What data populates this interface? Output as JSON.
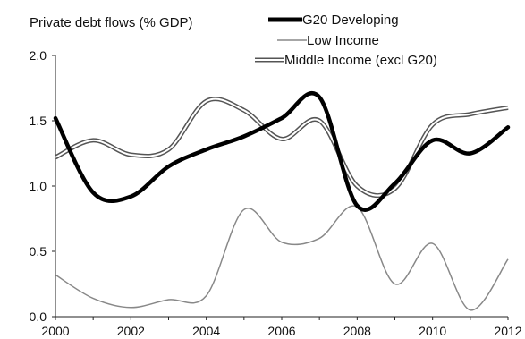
{
  "chart_data": {
    "type": "line",
    "title": "Private debt flows (% GDP)",
    "xlabel": "",
    "ylabel": "",
    "xlim": [
      2000,
      2012
    ],
    "ylim": [
      0,
      2
    ],
    "x_ticks": [
      "2000",
      "2002",
      "2004",
      "2006",
      "2008",
      "2010",
      "2012"
    ],
    "y_ticks": [
      "0.0",
      "0.5",
      "1.0",
      "1.5",
      "2.0"
    ],
    "grid": false,
    "legend_position": "top-right",
    "x": [
      2000,
      2001,
      2002,
      2003,
      2004,
      2005,
      2006,
      2007,
      2008,
      2009,
      2010,
      2011,
      2012
    ],
    "series": [
      {
        "name": "G20 Developing",
        "style": "thick-solid",
        "color": "#000000",
        "values": [
          1.52,
          0.95,
          0.92,
          1.15,
          1.28,
          1.38,
          1.52,
          1.68,
          0.85,
          1.02,
          1.35,
          1.25,
          1.45
        ]
      },
      {
        "name": "Low Income",
        "style": "thin-solid",
        "color": "#888888",
        "values": [
          0.32,
          0.14,
          0.07,
          0.13,
          0.16,
          0.82,
          0.57,
          0.6,
          0.84,
          0.25,
          0.56,
          0.05,
          0.44
        ]
      },
      {
        "name": "Middle Income (excl G20)",
        "style": "double-line",
        "color": "#666666",
        "values": [
          1.22,
          1.35,
          1.24,
          1.28,
          1.65,
          1.58,
          1.36,
          1.5,
          1.0,
          0.98,
          1.47,
          1.55,
          1.6
        ]
      }
    ]
  }
}
